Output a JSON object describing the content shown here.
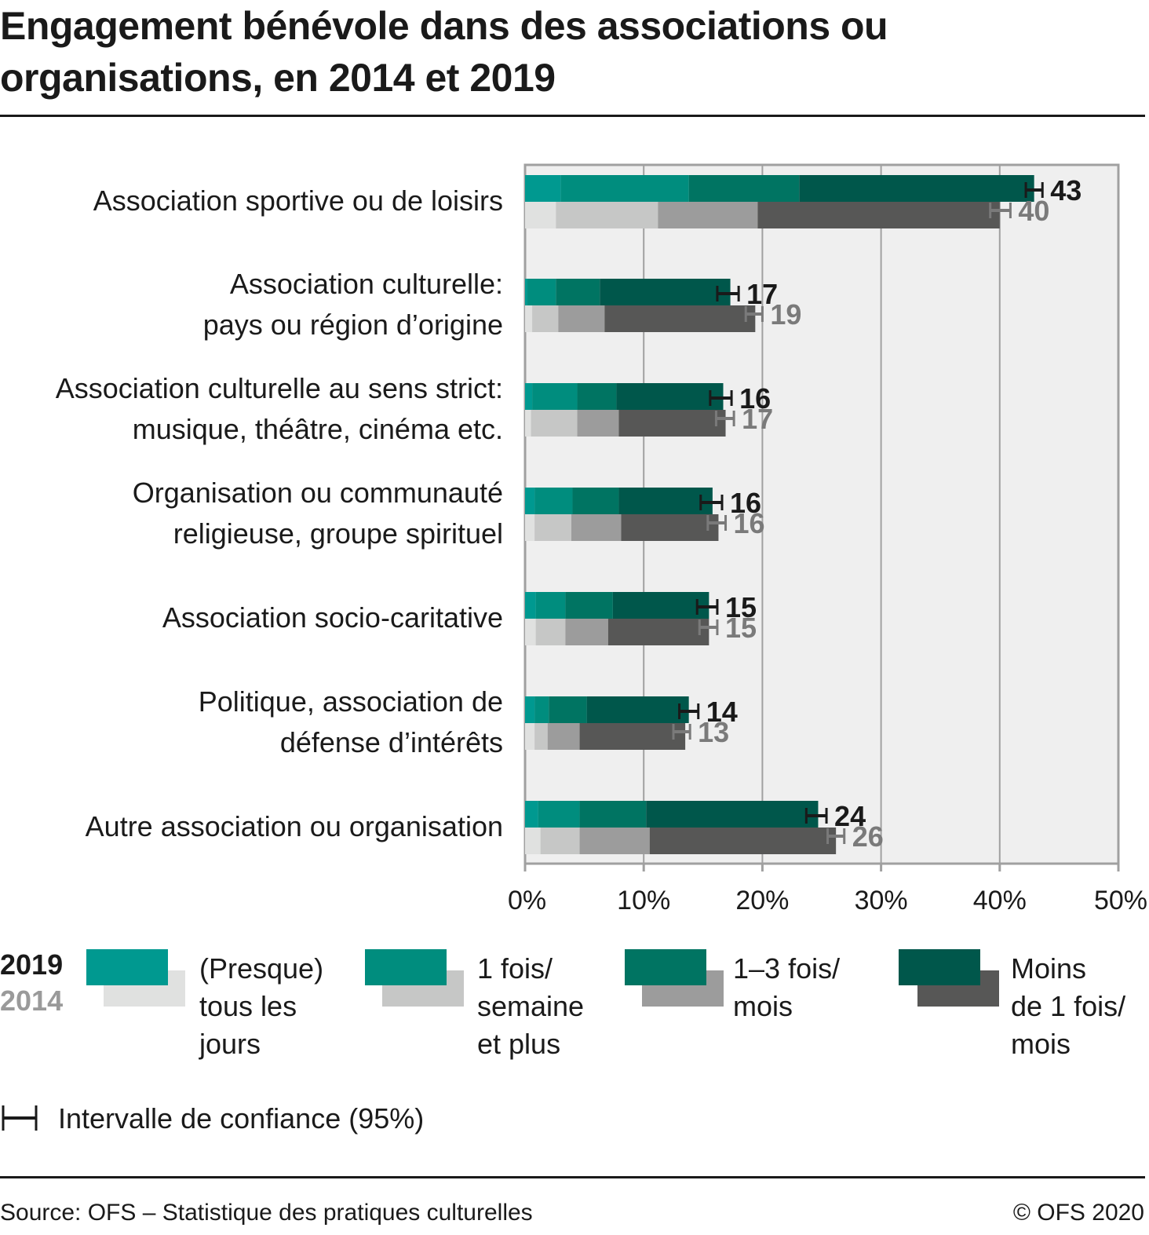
{
  "title": "Engagement bénévole dans des associations ou organisations, en 2014 et 2019",
  "chart_data": {
    "type": "bar",
    "orientation": "horizontal",
    "stacked": true,
    "title": "Engagement bénévole dans des associations ou organisations, en 2014 et 2019",
    "xlabel": "",
    "ylabel": "",
    "xlim": [
      0,
      50
    ],
    "x_ticks": [
      "0%",
      "10%",
      "20%",
      "30%",
      "40%",
      "50%"
    ],
    "grid": true,
    "categories": [
      "Association sportive ou de loisirs",
      "Association culturelle: pays ou région d’origine",
      "Association culturelle au sens strict: musique, théâtre, cinéma etc.",
      "Organisation ou communauté religieuse, groupe spirituel",
      "Association socio-caritative",
      "Politique, association de défense d’intérêts",
      "Autre association ou organisation"
    ],
    "category_lines": [
      [
        "Association sportive ou de loisirs"
      ],
      [
        "Association culturelle:",
        "pays ou région d’origine"
      ],
      [
        "Association culturelle au sens strict:",
        "musique, théâtre, cinéma etc."
      ],
      [
        "Organisation ou communauté",
        "religieuse, groupe spirituel"
      ],
      [
        "Association socio-caritative"
      ],
      [
        "Politique, association de",
        "défense d’intérêts"
      ],
      [
        "Autre association ou organisation"
      ]
    ],
    "segment_names": [
      "(Presque) tous les jours",
      "1 fois/ semaine et plus",
      "1–3 fois/ mois",
      "Moins de 1 fois/ mois"
    ],
    "series": [
      {
        "name": "2019",
        "colors": [
          "#009990",
          "#008d7e",
          "#007462",
          "#00574b"
        ],
        "label_color": "#1a1a1a",
        "ci_color": "#1a1a1a",
        "segments": [
          [
            3.0,
            10.8,
            9.3,
            19.8
          ],
          [
            0.2,
            2.4,
            3.7,
            11.0
          ],
          [
            0.6,
            3.8,
            3.3,
            9.0
          ],
          [
            0.8,
            3.2,
            3.9,
            7.9
          ],
          [
            0.9,
            2.5,
            4.0,
            8.1
          ],
          [
            0.8,
            1.2,
            3.2,
            8.6
          ],
          [
            1.1,
            3.5,
            5.6,
            14.5
          ]
        ],
        "totals": [
          43,
          17,
          16,
          16,
          15,
          14,
          24
        ],
        "ci": [
          [
            42.2,
            43.6
          ],
          [
            16.2,
            18.0
          ],
          [
            15.6,
            17.4
          ],
          [
            14.8,
            16.6
          ],
          [
            14.5,
            16.2
          ],
          [
            13.0,
            14.6
          ],
          [
            23.7,
            25.4
          ]
        ]
      },
      {
        "name": "2014",
        "colors": [
          "#e0e1e0",
          "#c6c7c6",
          "#9c9c9c",
          "#575756"
        ],
        "label_color": "#7a7a7a",
        "ci_color": "#7a7a7a",
        "segments": [
          [
            2.6,
            8.6,
            8.4,
            20.4
          ],
          [
            0.6,
            2.2,
            3.9,
            12.7
          ],
          [
            0.5,
            3.9,
            3.5,
            9.0
          ],
          [
            0.8,
            3.1,
            4.2,
            8.2
          ],
          [
            0.9,
            2.5,
            3.6,
            8.5
          ],
          [
            0.8,
            1.1,
            2.7,
            8.9
          ],
          [
            1.3,
            3.3,
            5.9,
            15.7
          ]
        ],
        "totals": [
          40,
          19,
          17,
          16,
          15,
          13,
          26
        ],
        "ci": [
          [
            39.2,
            40.9
          ],
          [
            18.6,
            20.0
          ],
          [
            16.1,
            17.6
          ],
          [
            15.4,
            16.9
          ],
          [
            14.7,
            16.2
          ],
          [
            12.5,
            13.9
          ],
          [
            25.5,
            26.9
          ]
        ]
      }
    ],
    "legend": {
      "position": "bottom",
      "years": [
        "2019",
        "2014"
      ],
      "ci_label": "Intervalle de confiance (95%)"
    }
  },
  "legend": {
    "year_2019": "2019",
    "year_2014": "2014",
    "items": [
      {
        "label": "(Presque)\ntous les\njours",
        "color_2019": "#009990",
        "color_2014": "#e0e1e0"
      },
      {
        "label": "1 fois/\nsemaine\net plus",
        "color_2019": "#008d7e",
        "color_2014": "#c6c7c6"
      },
      {
        "label": "1–3 fois/\nmois",
        "color_2019": "#007462",
        "color_2014": "#9c9c9c"
      },
      {
        "label": "Moins\nde 1 fois/\nmois",
        "color_2019": "#00574b",
        "color_2014": "#575756"
      }
    ],
    "ci_label": "Intervalle de confiance (95%)"
  },
  "footer": {
    "source": "Source: OFS – Statistique des pratiques culturelles",
    "copyright": "© OFS 2020"
  }
}
